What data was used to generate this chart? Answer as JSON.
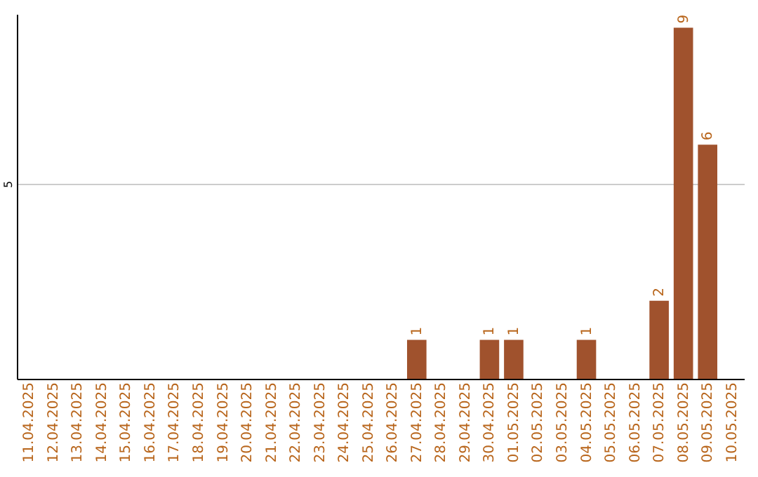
{
  "chart_data": {
    "type": "bar",
    "categories": [
      "11.04.2025",
      "12.04.2025",
      "13.04.2025",
      "14.04.2025",
      "15.04.2025",
      "16.04.2025",
      "17.04.2025",
      "18.04.2025",
      "19.04.2025",
      "20.04.2025",
      "21.04.2025",
      "22.04.2025",
      "23.04.2025",
      "24.04.2025",
      "25.04.2025",
      "26.04.2025",
      "27.04.2025",
      "28.04.2025",
      "29.04.2025",
      "30.04.2025",
      "01.05.2025",
      "02.05.2025",
      "03.05.2025",
      "04.05.2025",
      "05.05.2025",
      "06.05.2025",
      "07.05.2025",
      "08.05.2025",
      "09.05.2025",
      "10.05.2025"
    ],
    "values": [
      null,
      null,
      null,
      null,
      null,
      null,
      null,
      null,
      null,
      null,
      null,
      null,
      null,
      null,
      null,
      null,
      1,
      null,
      null,
      1,
      1,
      null,
      null,
      1,
      null,
      null,
      2,
      9,
      6,
      null
    ],
    "color": "#a0522d",
    "ylim": [
      0,
      9.35
    ],
    "yticks": [
      5
    ],
    "grid": "y",
    "data_labels": true
  }
}
